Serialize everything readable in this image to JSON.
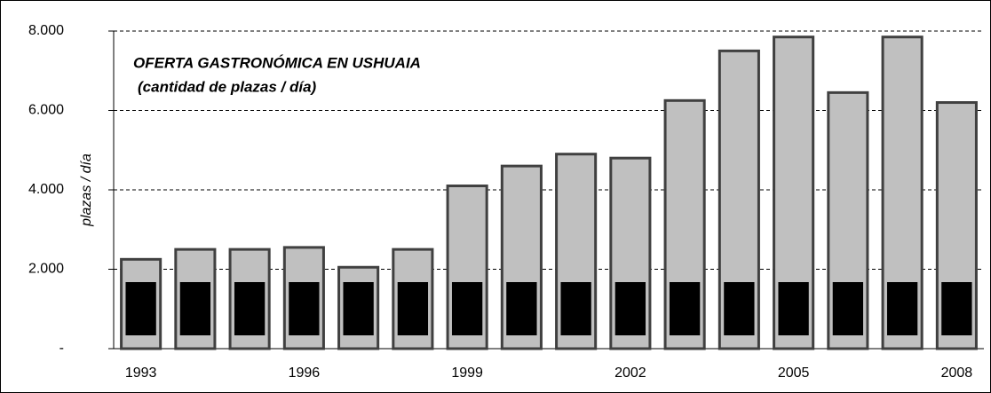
{
  "chart_data": {
    "type": "bar",
    "title": "OFERTA GASTRONÓMICA EN USHUAIA",
    "subtitle": "(cantidad de plazas / día)",
    "y_label": "plazas / día",
    "categories": [
      "1993",
      null,
      null,
      "1996",
      null,
      null,
      "1999",
      null,
      null,
      "2002",
      null,
      null,
      "2005",
      null,
      null,
      "2008"
    ],
    "values": [
      2250,
      2500,
      2500,
      2550,
      2050,
      2500,
      4100,
      4600,
      4900,
      4800,
      6250,
      7500,
      7850,
      6450,
      7850,
      6200
    ],
    "color": "#c0c0c0",
    "ylim": [
      0,
      8000
    ],
    "yticks": [
      {
        "value": 0,
        "label": "-"
      },
      {
        "value": 2000,
        "label": "2.000"
      },
      {
        "value": 4000,
        "label": "4.000"
      },
      {
        "value": 6000,
        "label": "6.000"
      },
      {
        "value": 8000,
        "label": "8.000"
      }
    ],
    "grid": true
  }
}
